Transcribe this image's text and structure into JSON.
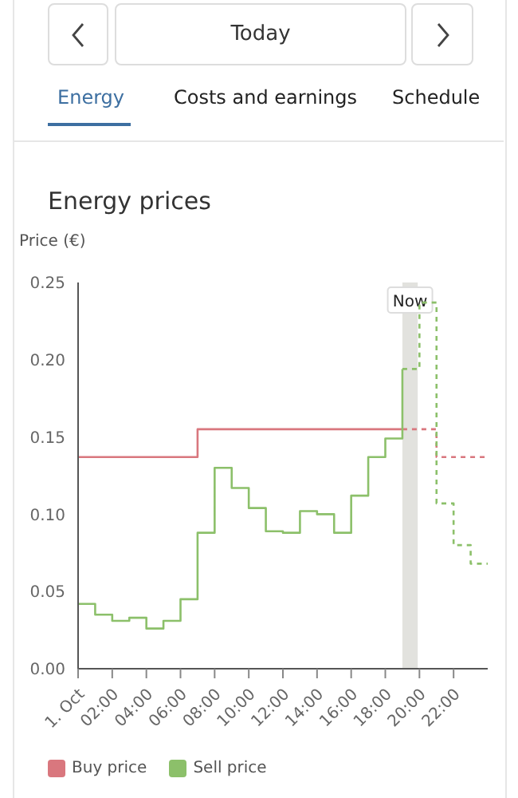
{
  "chart_data": {
    "type": "step",
    "title": "Energy prices",
    "ylabel": "Price (€)",
    "annotations": [
      "Today",
      "Energy",
      "Costs and earnings",
      "Schedule"
    ],
    "xlim": [
      0,
      24
    ],
    "xticks": [
      {
        "value": 0,
        "label": "1. Oct"
      },
      {
        "value": 2,
        "label": "02:00"
      },
      {
        "value": 4,
        "label": "04:00"
      },
      {
        "value": 6,
        "label": "06:00"
      },
      {
        "value": 8,
        "label": "08:00"
      },
      {
        "value": 10,
        "label": "10:00"
      },
      {
        "value": 12,
        "label": "12:00"
      },
      {
        "value": 14,
        "label": "14:00"
      },
      {
        "value": 16,
        "label": "16:00"
      },
      {
        "value": 18,
        "label": "18:00"
      },
      {
        "value": 20,
        "label": "20:00"
      },
      {
        "value": 22,
        "label": "22:00"
      }
    ],
    "ylim": [
      0,
      0.25
    ],
    "yticks": [
      {
        "value": 0,
        "label": "0.00"
      },
      {
        "value": 0.05,
        "label": "0.05"
      },
      {
        "value": 0.1,
        "label": "0.10"
      },
      {
        "value": 0.15,
        "label": "0.15"
      },
      {
        "value": 0.2,
        "label": "0.20"
      },
      {
        "value": 0.25,
        "label": "0.25"
      }
    ],
    "series": [
      {
        "name": "Buy price",
        "color": "#d9777e",
        "line_style": "solid",
        "x": [
          0,
          7,
          19
        ],
        "values": [
          0.137,
          0.155,
          0.155
        ]
      },
      {
        "color": "#d9777e",
        "line_style": "dashed",
        "x": [
          19,
          21,
          24
        ],
        "values": [
          0.155,
          0.137,
          0.137
        ]
      },
      {
        "name": "Sell price",
        "color": "#8cc06a",
        "line_style": "solid",
        "x": [
          0,
          1,
          2,
          3,
          4,
          5,
          6,
          7,
          8,
          9,
          10,
          11,
          12,
          13,
          14,
          15,
          16,
          17,
          18,
          19
        ],
        "values": [
          0.042,
          0.035,
          0.031,
          0.033,
          0.026,
          0.031,
          0.045,
          0.088,
          0.13,
          0.117,
          0.104,
          0.089,
          0.088,
          0.102,
          0.1,
          0.088,
          0.112,
          0.137,
          0.149,
          0.194
        ]
      },
      {
        "color": "#8cc06a",
        "line_style": "dashed",
        "x": [
          19,
          20,
          21,
          22,
          23,
          24
        ],
        "values": [
          0.194,
          0.237,
          0.107,
          0.08,
          0.068,
          0.068
        ]
      }
    ],
    "bands": [
      {
        "axis": "x",
        "from": 19,
        "to": 19.9,
        "label": "Now",
        "color": "#e2e2de"
      }
    ],
    "legend": "bottom",
    "marker": "none"
  }
}
